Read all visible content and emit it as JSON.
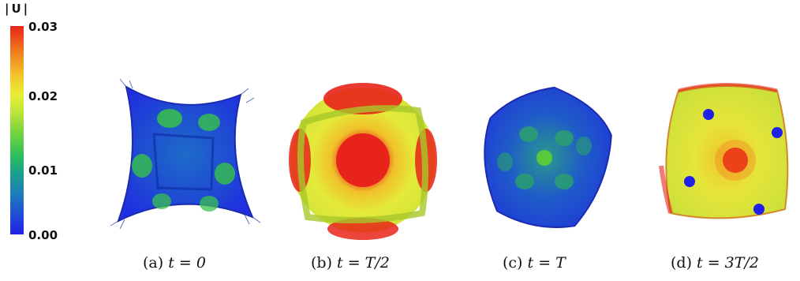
{
  "legend": {
    "title": "|U|",
    "ticks": [
      "0.03",
      "0.02",
      "0.01",
      "0.00"
    ]
  },
  "panels": [
    {
      "label": "(a)",
      "math": "t = 0"
    },
    {
      "label": "(b)",
      "math": "t = T/2"
    },
    {
      "label": "(c)",
      "math": "t = T"
    },
    {
      "label": "(d)",
      "math": "t = 3T/2"
    }
  ],
  "colors": {
    "max": "#e8241a",
    "mid": "#e9ee36",
    "low": "#2fbe5a",
    "min": "#1f20e8"
  }
}
